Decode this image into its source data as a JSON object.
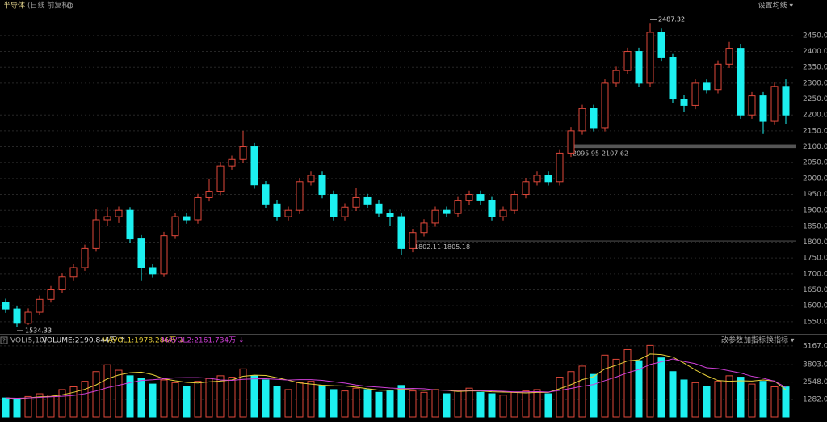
{
  "header": {
    "title": "半导体",
    "subtitle": "(日线 前复权)",
    "ma_button": "设置均线 ▾"
  },
  "chart_data": [
    {
      "type": "candlestick",
      "up_color": "#e0483a",
      "down_color": "#1cf0f0",
      "ylim": [
        1514,
        2526
      ],
      "yticks": [
        {
          "value": 1550,
          "label": "1550.00"
        },
        {
          "value": 1600,
          "label": "1600.00"
        },
        {
          "value": 1650,
          "label": "1650.00"
        },
        {
          "value": 1700,
          "label": "1700.00"
        },
        {
          "value": 1750,
          "label": "1750.00"
        },
        {
          "value": 1800,
          "label": "1800.00"
        },
        {
          "value": 1850,
          "label": "1850.00"
        },
        {
          "value": 1900,
          "label": "1900.00"
        },
        {
          "value": 1950,
          "label": "1950.00"
        },
        {
          "value": 2000,
          "label": "2000.00"
        },
        {
          "value": 2050,
          "label": "2050.00"
        },
        {
          "value": 2100,
          "label": "2100.00"
        },
        {
          "value": 2150,
          "label": "2150.00"
        },
        {
          "value": 2200,
          "label": "2200.00"
        },
        {
          "value": 2250,
          "label": "2250.00"
        },
        {
          "value": 2300,
          "label": "2300.00"
        },
        {
          "value": 2350,
          "label": "2350.00"
        },
        {
          "value": 2400,
          "label": "2400.00"
        },
        {
          "value": 2450,
          "label": "2450.00"
        }
      ],
      "grid": true,
      "open": [
        1610,
        1590,
        1545,
        1580,
        1620,
        1650,
        1690,
        1720,
        1780,
        1870,
        1880,
        1900,
        1810,
        1720,
        1700,
        1820,
        1880,
        1870,
        1940,
        1960,
        2040,
        2060,
        2100,
        1980,
        1920,
        1880,
        1900,
        1990,
        2010,
        1950,
        1880,
        1910,
        1940,
        1920,
        1890,
        1880,
        1780,
        1830,
        1860,
        1900,
        1890,
        1930,
        1950,
        1930,
        1880,
        1900,
        1950,
        1990,
        2010,
        1990,
        2080,
        2150,
        2220,
        2160,
        2300,
        2340,
        2400,
        2300,
        2460,
        2380,
        2250,
        2230,
        2300,
        2280,
        2360,
        2410,
        2200,
        2260,
        2180,
        2290
      ],
      "high": [
        1622,
        1600,
        1592,
        1632,
        1662,
        1702,
        1732,
        1792,
        1905,
        1910,
        1912,
        1910,
        1822,
        1732,
        1832,
        1892,
        1892,
        1952,
        2000,
        2052,
        2072,
        2150,
        2112,
        1992,
        1932,
        1912,
        2002,
        2022,
        2022,
        1962,
        1922,
        1970,
        1952,
        1932,
        1902,
        1892,
        1842,
        1872,
        1912,
        1912,
        1942,
        1962,
        1962,
        1942,
        1912,
        1962,
        2002,
        2022,
        2022,
        2092,
        2162,
        2232,
        2232,
        2312,
        2352,
        2412,
        2412,
        2487.32,
        2472,
        2392,
        2262,
        2312,
        2312,
        2372,
        2430,
        2422,
        2272,
        2272,
        2302,
        2312
      ],
      "low": [
        1578,
        1534.33,
        1540,
        1570,
        1610,
        1640,
        1680,
        1710,
        1770,
        1850,
        1860,
        1798,
        1680,
        1688,
        1690,
        1810,
        1858,
        1858,
        1928,
        1948,
        2028,
        2048,
        1968,
        1908,
        1868,
        1868,
        1888,
        1978,
        1938,
        1868,
        1868,
        1898,
        1908,
        1878,
        1850,
        1760,
        1768,
        1818,
        1848,
        1878,
        1878,
        1918,
        1918,
        1868,
        1868,
        1888,
        1938,
        1978,
        1978,
        1978,
        2068,
        2138,
        2148,
        2148,
        2288,
        2328,
        2288,
        2288,
        2368,
        2238,
        2210,
        2218,
        2268,
        2268,
        2348,
        2188,
        2188,
        2140,
        2168,
        2170
      ],
      "close": [
        1590,
        1545,
        1580,
        1620,
        1650,
        1690,
        1720,
        1780,
        1870,
        1880,
        1900,
        1810,
        1720,
        1700,
        1820,
        1880,
        1870,
        1940,
        1960,
        2040,
        2060,
        2100,
        1980,
        1920,
        1880,
        1900,
        1990,
        2010,
        1950,
        1880,
        1910,
        1940,
        1920,
        1890,
        1880,
        1780,
        1830,
        1860,
        1900,
        1890,
        1930,
        1950,
        1930,
        1880,
        1900,
        1950,
        1990,
        2010,
        1990,
        2080,
        2150,
        2220,
        2160,
        2300,
        2340,
        2400,
        2300,
        2460,
        2380,
        2250,
        2230,
        2300,
        2280,
        2360,
        2410,
        2200,
        2260,
        2180,
        2290,
        2200
      ],
      "annotations": [
        {
          "label": "2487.32"
        },
        {
          "label": "1534.33"
        }
      ],
      "bands": [
        {
          "label": "2095.95-2107.62",
          "from": 2095.95,
          "to": 2107.62
        },
        {
          "label": "1802.11-1805.18",
          "from": 1802.11,
          "to": 1805.18
        }
      ]
    },
    {
      "type": "volume",
      "indicator": "VOL(5,10)",
      "volume_label": "VOLUME:2190.844万 ↑",
      "mavol1_label": "MAVOL1:1978.286万 ↓",
      "mavol2_label": "MAVOL2:2161.734万 ↓",
      "buttons": [
        "改参数",
        "加指标",
        "换指标 ▾"
      ],
      "ylim": [
        0,
        5280
      ],
      "yticks": [
        {
          "value": 1282,
          "label": "1282.00"
        },
        {
          "value": 2548,
          "label": "2548.00"
        },
        {
          "value": 3803,
          "label": "3803.00"
        },
        {
          "value": 5167,
          "label": "5167.00"
        }
      ],
      "values": [
        1400,
        1300,
        1500,
        1700,
        1600,
        2000,
        2200,
        2600,
        3300,
        3800,
        3400,
        3000,
        2800,
        2400,
        2700,
        2500,
        2200,
        2600,
        2800,
        3000,
        2900,
        3500,
        3000,
        2700,
        2200,
        2000,
        2500,
        2600,
        2300,
        2000,
        1900,
        2100,
        2000,
        1800,
        1900,
        2300,
        1900,
        1800,
        2000,
        1700,
        1900,
        2100,
        1800,
        1700,
        1600,
        1800,
        1900,
        2000,
        1700,
        2900,
        3300,
        3700,
        3100,
        4500,
        4200,
        4900,
        4100,
        5200,
        4300,
        3300,
        2700,
        2500,
        2200,
        2600,
        3000,
        2900,
        2400,
        2600,
        2200,
        2190.844
      ],
      "series": [
        {
          "name": "MAVOL1",
          "color": "#e8d03a",
          "values": [
            1400,
            1350,
            1400,
            1480,
            1500,
            1620,
            1800,
            2020,
            2340,
            2780,
            3060,
            3220,
            3260,
            3080,
            2780,
            2640,
            2520,
            2480,
            2560,
            2620,
            2700,
            2960,
            3040,
            3020,
            2860,
            2680,
            2480,
            2400,
            2320,
            2280,
            2260,
            2180,
            2060,
            1960,
            1940,
            2020,
            1980,
            1940,
            1980,
            1940,
            1860,
            1900,
            1900,
            1840,
            1820,
            1800,
            1760,
            1800,
            1800,
            2060,
            2360,
            2720,
            2940,
            3500,
            3760,
            4080,
            4160,
            4580,
            4540,
            4360,
            3920,
            3420,
            3000,
            2660,
            2600,
            2640,
            2620,
            2700,
            2620,
            1978.286
          ]
        },
        {
          "name": "MAVOL2",
          "color": "#d040d8",
          "values": [
            1400,
            1380,
            1400,
            1440,
            1480,
            1520,
            1580,
            1700,
            1900,
            2140,
            2320,
            2500,
            2660,
            2710,
            2780,
            2850,
            2870,
            2870,
            2820,
            2700,
            2670,
            2740,
            2780,
            2790,
            2740,
            2690,
            2720,
            2720,
            2670,
            2570,
            2470,
            2330,
            2230,
            2180,
            2110,
            2070,
            2080,
            2060,
            1970,
            1940,
            1940,
            1940,
            1920,
            1910,
            1880,
            1830,
            1830,
            1850,
            1820,
            1940,
            2080,
            2240,
            2370,
            2650,
            2910,
            3220,
            3450,
            3820,
            4020,
            4220,
            4040,
            3880,
            3580,
            3520,
            3360,
            3200,
            2960,
            2820,
            2610,
            2161.734
          ]
        }
      ]
    }
  ]
}
